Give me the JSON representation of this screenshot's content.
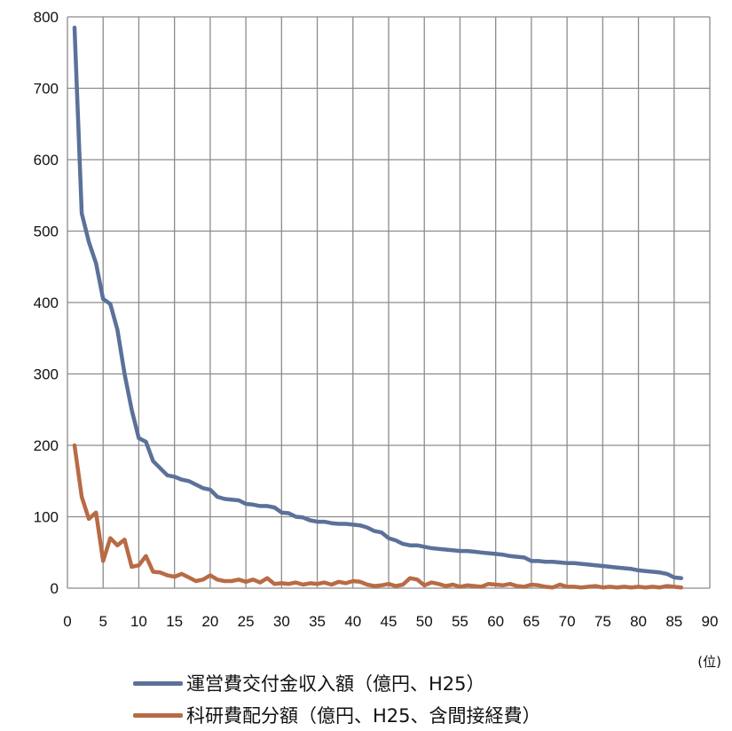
{
  "chart_data": {
    "type": "line",
    "x_unit": "(位)",
    "xlim": [
      0,
      90
    ],
    "ylim": [
      0,
      800
    ],
    "x_ticks": [
      0,
      5,
      10,
      15,
      20,
      25,
      30,
      35,
      40,
      45,
      50,
      55,
      60,
      65,
      70,
      75,
      80,
      85,
      90
    ],
    "y_ticks": [
      0,
      100,
      200,
      300,
      400,
      500,
      600,
      700,
      800
    ],
    "grid": true,
    "legend_position": "bottom",
    "series": [
      {
        "name": "運営費交付金収入額（億円、H25）",
        "color": "#5b7199",
        "x": [
          1,
          2,
          3,
          4,
          5,
          6,
          7,
          8,
          9,
          10,
          11,
          12,
          13,
          14,
          15,
          16,
          17,
          18,
          19,
          20,
          21,
          22,
          23,
          24,
          25,
          26,
          27,
          28,
          29,
          30,
          31,
          32,
          33,
          34,
          35,
          36,
          37,
          38,
          39,
          40,
          41,
          42,
          43,
          44,
          45,
          46,
          47,
          48,
          49,
          50,
          51,
          52,
          53,
          54,
          55,
          56,
          57,
          58,
          59,
          60,
          61,
          62,
          63,
          64,
          65,
          66,
          67,
          68,
          69,
          70,
          71,
          72,
          73,
          74,
          75,
          76,
          77,
          78,
          79,
          80,
          81,
          82,
          83,
          84,
          85,
          86
        ],
        "values": [
          785,
          525,
          485,
          455,
          405,
          398,
          362,
          300,
          250,
          210,
          205,
          178,
          168,
          158,
          156,
          152,
          150,
          145,
          140,
          138,
          128,
          125,
          124,
          123,
          118,
          117,
          115,
          115,
          113,
          106,
          105,
          100,
          99,
          95,
          93,
          93,
          91,
          90,
          90,
          89,
          88,
          85,
          80,
          78,
          70,
          67,
          62,
          60,
          60,
          58,
          56,
          55,
          54,
          53,
          52,
          52,
          51,
          50,
          49,
          48,
          47,
          45,
          44,
          43,
          38,
          38,
          37,
          37,
          36,
          35,
          35,
          34,
          33,
          32,
          31,
          30,
          29,
          28,
          27,
          25,
          24,
          23,
          22,
          20,
          15,
          14
        ]
      },
      {
        "name": "科研費配分額（億円、H25、含間接経費）",
        "color": "#b86b45",
        "x": [
          1,
          2,
          3,
          4,
          5,
          6,
          7,
          8,
          9,
          10,
          11,
          12,
          13,
          14,
          15,
          16,
          17,
          18,
          19,
          20,
          21,
          22,
          23,
          24,
          25,
          26,
          27,
          28,
          29,
          30,
          31,
          32,
          33,
          34,
          35,
          36,
          37,
          38,
          39,
          40,
          41,
          42,
          43,
          44,
          45,
          46,
          47,
          48,
          49,
          50,
          51,
          52,
          53,
          54,
          55,
          56,
          57,
          58,
          59,
          60,
          61,
          62,
          63,
          64,
          65,
          66,
          67,
          68,
          69,
          70,
          71,
          72,
          73,
          74,
          75,
          76,
          77,
          78,
          79,
          80,
          81,
          82,
          83,
          84,
          85,
          86
        ],
        "values": [
          200,
          128,
          97,
          106,
          38,
          70,
          60,
          68,
          30,
          32,
          45,
          23,
          22,
          18,
          16,
          20,
          15,
          10,
          12,
          18,
          12,
          10,
          10,
          12,
          9,
          12,
          8,
          14,
          6,
          7,
          6,
          8,
          5,
          7,
          6,
          8,
          5,
          9,
          7,
          10,
          9,
          5,
          3,
          4,
          6,
          3,
          5,
          14,
          12,
          4,
          8,
          6,
          3,
          5,
          2,
          4,
          3,
          2,
          6,
          5,
          4,
          6,
          3,
          2,
          5,
          4,
          2,
          1,
          5,
          2,
          2,
          1,
          2,
          3,
          1,
          2,
          1,
          2,
          1,
          2,
          1,
          2,
          1,
          3,
          2,
          1
        ]
      }
    ]
  }
}
